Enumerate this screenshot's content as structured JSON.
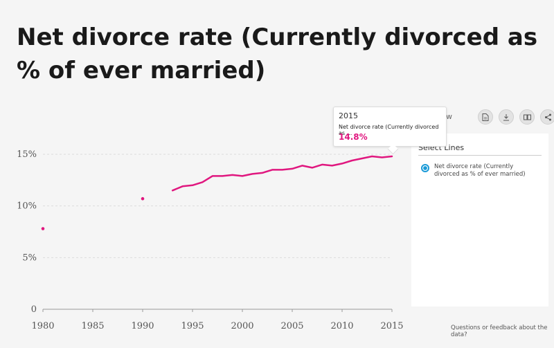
{
  "title": "Net divorce rate (Currently divorced as % of ever married)",
  "colors": {
    "series": "#e0177f",
    "accent": "#1a9ad7"
  },
  "toolbar": {
    "view_label": "w",
    "icons": [
      "pdf-icon",
      "download-icon",
      "book-icon",
      "share-icon"
    ]
  },
  "panel": {
    "heading": "Select Lines",
    "legend_label": "Net divorce rate (Currently divorced as % of ever married)"
  },
  "tooltip": {
    "year": "2015",
    "series": "Net divorce rate (Currently divorced as ...",
    "value": "14.8%"
  },
  "feedback_link": "Questions or feedback about the data?",
  "chart_data": {
    "type": "line",
    "series": [
      {
        "name": "Net divorce rate (Currently divorced as % of ever married)",
        "isolated_points": [
          [
            1980,
            7.8
          ],
          [
            1990,
            10.7
          ]
        ],
        "line_x": [
          1993,
          1994,
          1995,
          1996,
          1997,
          1998,
          1999,
          2000,
          2001,
          2002,
          2003,
          2004,
          2005,
          2006,
          2007,
          2008,
          2009,
          2010,
          2011,
          2012,
          2013,
          2014,
          2015
        ],
        "line_y": [
          11.5,
          11.9,
          12.0,
          12.3,
          12.9,
          12.9,
          13.0,
          12.9,
          13.1,
          13.2,
          13.5,
          13.5,
          13.6,
          13.9,
          13.7,
          14.0,
          13.9,
          14.1,
          14.4,
          14.6,
          14.8,
          14.7,
          14.8
        ]
      }
    ],
    "xlim": [
      1980,
      2015
    ],
    "ylim": [
      0,
      15
    ],
    "x_ticks": [
      "1980",
      "1985",
      "1990",
      "1995",
      "2000",
      "2005",
      "2010",
      "2015"
    ],
    "y_ticks": [
      "0",
      "5%",
      "10%",
      "15%"
    ],
    "grid": true
  }
}
